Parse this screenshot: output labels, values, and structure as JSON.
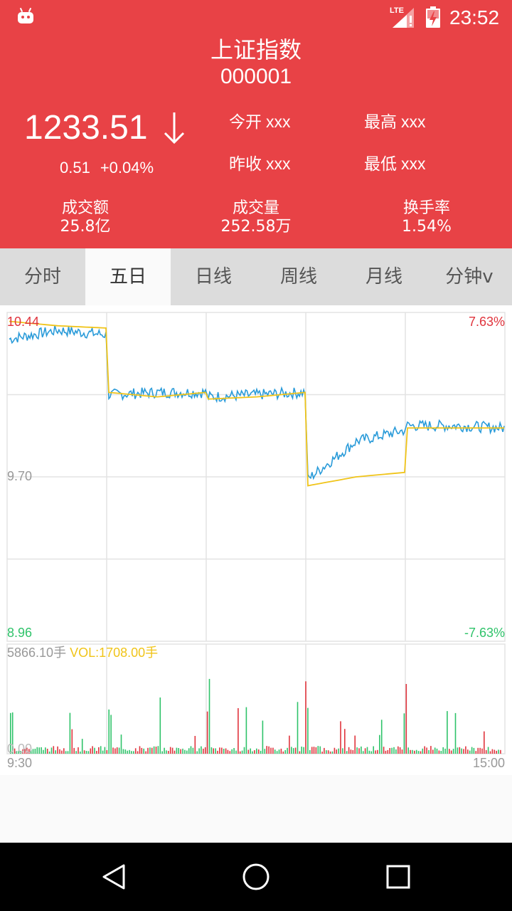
{
  "status_bar": {
    "time": "23:52",
    "network": "LTE"
  },
  "header": {
    "title": "上证指数",
    "code": "000001",
    "price": "1233.51",
    "change_abs": "0.51",
    "change_pct": "+0.04%",
    "open_label": "今开",
    "open_value": "xxx",
    "high_label": "最高",
    "high_value": "xxx",
    "prev_close_label": "昨收",
    "prev_close_value": "xxx",
    "low_label": "最低",
    "low_value": "xxx",
    "turnover_label": "成交额",
    "turnover_value": "25.8亿",
    "volume_label": "成交量",
    "volume_value": "252.58万",
    "turnover_rate_label": "换手率",
    "turnover_rate_value": "1.54%"
  },
  "tabs": [
    {
      "label": "分时",
      "active": false
    },
    {
      "label": "五日",
      "active": true
    },
    {
      "label": "日线",
      "active": false
    },
    {
      "label": "周线",
      "active": false
    },
    {
      "label": "月线",
      "active": false
    },
    {
      "label": "分钟v",
      "active": false
    }
  ],
  "chart": {
    "y_max": "10.44",
    "y_mid": "9.70",
    "y_min": "8.96",
    "pct_max": "7.63%",
    "pct_min": "-7.63%",
    "volume_max": "5866.10手",
    "vol_label": "VOL:1708.00手",
    "volume_zero": "0.00",
    "time_start": "9:30",
    "time_end": "15:00"
  },
  "chart_data": {
    "type": "line",
    "y_range": [
      8.96,
      10.44
    ],
    "y_reference": 9.7,
    "days": 5,
    "series": [
      {
        "color": "#2a9bd9",
        "days": [
          [
            10.32,
            10.36,
            10.34
          ],
          [
            10.07,
            10.08,
            10.08
          ],
          [
            10.06,
            10.07,
            10.08
          ],
          [
            9.69,
            9.86,
            9.91
          ],
          [
            9.93,
            9.93,
            9.92
          ]
        ]
      },
      {
        "color": "#f0c419",
        "days": [
          [
            10.4,
            10.38,
            10.37
          ],
          [
            10.08,
            10.06,
            10.08
          ],
          [
            10.05,
            10.06,
            10.08
          ],
          [
            9.66,
            9.7,
            9.72
          ],
          [
            9.92,
            9.92,
            9.92
          ]
        ]
      }
    ],
    "colors": {
      "up": "#e0343d",
      "down": "#2fc36a",
      "price_line": "#2a9bd9",
      "avg_line": "#f0c419"
    }
  }
}
